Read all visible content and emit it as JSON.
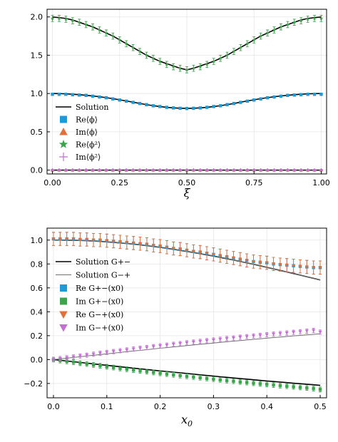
{
  "colors": {
    "solution": "#000000",
    "solution_alt": "#707070",
    "blue": "#1e9bd7",
    "orange": "#e1703c",
    "green": "#3da44d",
    "purple": "#c271d2"
  },
  "chart_data": [
    {
      "type": "scatter",
      "xlabel": "ξ",
      "xlim": [
        -0.02,
        1.02
      ],
      "ylim": [
        -0.05,
        2.1
      ],
      "xticks": [
        "0.00",
        "0.25",
        "0.50",
        "0.75",
        "1.00"
      ],
      "yticks": [
        "0.0",
        "0.5",
        "1.0",
        "1.5",
        "2.0"
      ],
      "grid": true,
      "legend_position": "bottom-left",
      "legend": [
        {
          "label": "Solution",
          "marker": "line",
          "color": "#000000"
        },
        {
          "label": "Re⟨ϕ⟩",
          "marker": "square",
          "color": "#1e9bd7"
        },
        {
          "label": "Im⟨ϕ⟩",
          "marker": "triangle-up",
          "color": "#e1703c"
        },
        {
          "label": "Re⟨ϕ²⟩",
          "marker": "star",
          "color": "#3da44d"
        },
        {
          "label": "Im⟨ϕ²⟩",
          "marker": "cross",
          "color": "#c271d2"
        }
      ],
      "x": [
        0.0,
        0.025,
        0.05,
        0.075,
        0.1,
        0.125,
        0.15,
        0.175,
        0.2,
        0.225,
        0.25,
        0.275,
        0.3,
        0.325,
        0.35,
        0.375,
        0.4,
        0.425,
        0.45,
        0.475,
        0.5,
        0.525,
        0.55,
        0.575,
        0.6,
        0.625,
        0.65,
        0.675,
        0.7,
        0.725,
        0.75,
        0.775,
        0.8,
        0.825,
        0.85,
        0.875,
        0.9,
        0.925,
        0.95,
        0.975,
        1.0
      ],
      "series": [
        {
          "kind": "line",
          "values": [
            2.0,
            1.99,
            1.98,
            1.96,
            1.93,
            1.9,
            1.87,
            1.83,
            1.79,
            1.75,
            1.7,
            1.65,
            1.6,
            1.55,
            1.5,
            1.46,
            1.42,
            1.39,
            1.36,
            1.33,
            1.31,
            1.33,
            1.36,
            1.39,
            1.42,
            1.46,
            1.5,
            1.55,
            1.6,
            1.65,
            1.7,
            1.75,
            1.79,
            1.83,
            1.87,
            1.9,
            1.93,
            1.96,
            1.98,
            1.99,
            2.0
          ]
        },
        {
          "kind": "line",
          "values": [
            1.0,
            0.999,
            0.996,
            0.991,
            0.985,
            0.977,
            0.968,
            0.958,
            0.946,
            0.933,
            0.918,
            0.903,
            0.887,
            0.87,
            0.855,
            0.841,
            0.83,
            0.82,
            0.813,
            0.808,
            0.806,
            0.808,
            0.813,
            0.82,
            0.83,
            0.841,
            0.855,
            0.87,
            0.887,
            0.903,
            0.918,
            0.933,
            0.946,
            0.958,
            0.968,
            0.977,
            0.985,
            0.991,
            0.996,
            0.999,
            1.0
          ]
        },
        {
          "kind": "line",
          "values": [
            0.0,
            0.0,
            0.0,
            0.0,
            0.0,
            0.0,
            0.0,
            0.0,
            0.0,
            0.0,
            0.0,
            0.0,
            0.0,
            0.0,
            0.0,
            0.0,
            0.0,
            0.0,
            0.0,
            0.0,
            0.0,
            0.0,
            0.0,
            0.0,
            0.0,
            0.0,
            0.0,
            0.0,
            0.0,
            0.0,
            0.0,
            0.0,
            0.0,
            0.0,
            0.0,
            0.0,
            0.0,
            0.0,
            0.0,
            0.0,
            0.0
          ]
        },
        {
          "name": "Re⟨ϕ⟩",
          "kind": "marker",
          "marker": "square",
          "color": "#1e9bd7",
          "err": 0.015,
          "values": [
            0.99,
            0.99,
            0.99,
            0.985,
            0.98,
            0.975,
            0.965,
            0.955,
            0.945,
            0.93,
            0.915,
            0.9,
            0.885,
            0.87,
            0.855,
            0.84,
            0.83,
            0.82,
            0.812,
            0.807,
            0.805,
            0.807,
            0.812,
            0.82,
            0.83,
            0.84,
            0.855,
            0.87,
            0.885,
            0.9,
            0.915,
            0.93,
            0.945,
            0.955,
            0.965,
            0.975,
            0.98,
            0.985,
            0.99,
            0.99,
            0.99
          ]
        },
        {
          "name": "Re⟨ϕ²⟩",
          "kind": "marker",
          "marker": "star",
          "color": "#3da44d",
          "err": 0.04,
          "values": [
            1.98,
            1.98,
            1.97,
            1.95,
            1.93,
            1.9,
            1.87,
            1.83,
            1.79,
            1.75,
            1.7,
            1.65,
            1.6,
            1.55,
            1.5,
            1.46,
            1.42,
            1.38,
            1.35,
            1.33,
            1.31,
            1.33,
            1.35,
            1.38,
            1.42,
            1.46,
            1.5,
            1.55,
            1.6,
            1.65,
            1.7,
            1.75,
            1.79,
            1.83,
            1.87,
            1.9,
            1.93,
            1.95,
            1.97,
            1.98,
            1.98
          ]
        },
        {
          "name": "Im⟨ϕ⟩",
          "kind": "marker",
          "marker": "triangle-up",
          "color": "#e1703c",
          "err": 0.01,
          "values": [
            0.0,
            0.0,
            0.0,
            0.0,
            0.0,
            0.0,
            0.0,
            0.0,
            0.0,
            0.0,
            0.0,
            0.0,
            0.0,
            0.0,
            0.0,
            0.0,
            0.0,
            0.0,
            0.0,
            0.0,
            0.0,
            0.0,
            0.0,
            0.0,
            0.0,
            0.0,
            0.0,
            0.0,
            0.0,
            0.0,
            0.0,
            0.0,
            0.0,
            0.0,
            0.0,
            0.0,
            0.0,
            0.0,
            0.0,
            0.0,
            0.0
          ]
        },
        {
          "name": "Im⟨ϕ²⟩",
          "kind": "marker",
          "marker": "cross",
          "color": "#c271d2",
          "err": 0.01,
          "values": [
            0.0,
            0.0,
            0.0,
            0.0,
            0.0,
            0.0,
            0.0,
            0.0,
            0.0,
            0.0,
            0.0,
            0.0,
            0.0,
            0.0,
            0.0,
            0.0,
            0.0,
            0.0,
            0.0,
            0.0,
            0.0,
            0.0,
            0.0,
            0.0,
            0.0,
            0.0,
            0.0,
            0.0,
            0.0,
            0.0,
            0.0,
            0.0,
            0.0,
            0.0,
            0.0,
            0.0,
            0.0,
            0.0,
            0.0,
            0.0,
            0.0
          ]
        }
      ]
    },
    {
      "type": "scatter",
      "xlabel": "x0",
      "xlim": [
        -0.012,
        0.512
      ],
      "ylim": [
        -0.32,
        1.1
      ],
      "xticks": [
        "0.0",
        "0.1",
        "0.2",
        "0.3",
        "0.4",
        "0.5"
      ],
      "xtick_values": [
        0.0,
        0.1,
        0.2,
        0.3,
        0.4,
        0.5
      ],
      "yticks": [
        "−0.2",
        "0.0",
        "0.2",
        "0.4",
        "0.6",
        "0.8",
        "1.0"
      ],
      "ytick_values": [
        -0.2,
        0.0,
        0.2,
        0.4,
        0.6,
        0.8,
        1.0
      ],
      "grid": true,
      "legend_position": "top-left",
      "legend": [
        {
          "label": "Solution G+−",
          "marker": "line",
          "color": "#000000"
        },
        {
          "label": "Solution G−+",
          "marker": "line-thin",
          "color": "#707070"
        },
        {
          "label": "Re G+−(x0)",
          "marker": "square",
          "color": "#1e9bd7"
        },
        {
          "label": "Im G+−(x0)",
          "marker": "square",
          "color": "#3da44d"
        },
        {
          "label": "Re G−+(x0)",
          "marker": "triangle-down",
          "color": "#e1703c"
        },
        {
          "label": "Im G−+(x0)",
          "marker": "triangle-down",
          "color": "#c271d2"
        }
      ],
      "x": [
        0.0,
        0.0125,
        0.025,
        0.0375,
        0.05,
        0.0625,
        0.075,
        0.0875,
        0.1,
        0.1125,
        0.125,
        0.1375,
        0.15,
        0.1625,
        0.175,
        0.1875,
        0.2,
        0.2125,
        0.225,
        0.2375,
        0.25,
        0.2625,
        0.275,
        0.2875,
        0.3,
        0.3125,
        0.325,
        0.3375,
        0.35,
        0.3625,
        0.375,
        0.3875,
        0.4,
        0.4125,
        0.425,
        0.4375,
        0.45,
        0.4625,
        0.475,
        0.4875,
        0.5
      ],
      "series": [
        {
          "kind": "line",
          "name": "Solution G+−",
          "values": [
            1.0,
            1.0,
            0.999,
            0.998,
            0.997,
            0.995,
            0.992,
            0.989,
            0.985,
            0.981,
            0.976,
            0.971,
            0.966,
            0.96,
            0.953,
            0.946,
            0.939,
            0.931,
            0.923,
            0.914,
            0.905,
            0.896,
            0.886,
            0.876,
            0.866,
            0.855,
            0.844,
            0.833,
            0.821,
            0.809,
            0.797,
            0.785,
            0.772,
            0.759,
            0.746,
            0.733,
            0.72,
            0.707,
            0.693,
            0.68,
            0.666
          ]
        },
        {
          "kind": "line",
          "name": "Solution G+−",
          "values": [
            0.0,
            -0.006,
            -0.012,
            -0.018,
            -0.024,
            -0.03,
            -0.036,
            -0.042,
            -0.048,
            -0.054,
            -0.06,
            -0.066,
            -0.072,
            -0.077,
            -0.083,
            -0.089,
            -0.095,
            -0.1,
            -0.106,
            -0.111,
            -0.117,
            -0.122,
            -0.128,
            -0.133,
            -0.138,
            -0.144,
            -0.149,
            -0.154,
            -0.159,
            -0.164,
            -0.169,
            -0.174,
            -0.179,
            -0.184,
            -0.188,
            -0.193,
            -0.198,
            -0.202,
            -0.207,
            -0.211,
            -0.216
          ]
        },
        {
          "kind": "line-thin",
          "name": "Solution G−+",
          "values": [
            1.0,
            1.0,
            0.999,
            0.998,
            0.997,
            0.995,
            0.992,
            0.989,
            0.985,
            0.981,
            0.976,
            0.971,
            0.966,
            0.96,
            0.953,
            0.946,
            0.939,
            0.931,
            0.923,
            0.914,
            0.905,
            0.896,
            0.886,
            0.876,
            0.866,
            0.855,
            0.844,
            0.833,
            0.821,
            0.809,
            0.797,
            0.785,
            0.772,
            0.759,
            0.746,
            0.733,
            0.72,
            0.707,
            0.693,
            0.68,
            0.666
          ]
        },
        {
          "kind": "line-thin",
          "name": "Solution G−+",
          "values": [
            0.0,
            0.006,
            0.012,
            0.018,
            0.024,
            0.03,
            0.036,
            0.042,
            0.048,
            0.054,
            0.06,
            0.066,
            0.072,
            0.077,
            0.083,
            0.089,
            0.095,
            0.1,
            0.106,
            0.111,
            0.117,
            0.122,
            0.128,
            0.133,
            0.138,
            0.144,
            0.149,
            0.154,
            0.159,
            0.164,
            0.169,
            0.174,
            0.179,
            0.184,
            0.188,
            0.193,
            0.198,
            0.202,
            0.207,
            0.211,
            0.216
          ]
        },
        {
          "name": "Re G+−(x0)",
          "kind": "marker",
          "marker": "square",
          "color": "#1e9bd7",
          "err": 0.055,
          "values": [
            1.01,
            1.01,
            1.01,
            1.01,
            1.005,
            1.005,
            1.0,
            1.0,
            0.995,
            0.99,
            0.985,
            0.98,
            0.975,
            0.97,
            0.965,
            0.955,
            0.95,
            0.94,
            0.93,
            0.925,
            0.915,
            0.905,
            0.9,
            0.89,
            0.88,
            0.87,
            0.86,
            0.85,
            0.84,
            0.83,
            0.82,
            0.815,
            0.81,
            0.8,
            0.795,
            0.79,
            0.785,
            0.78,
            0.775,
            0.77,
            0.77
          ]
        },
        {
          "name": "Re G−+(x0)",
          "kind": "marker",
          "marker": "triangle-down",
          "color": "#e1703c",
          "err": 0.055,
          "values": [
            1.01,
            1.01,
            1.01,
            1.01,
            1.005,
            1.005,
            1.0,
            1.0,
            0.995,
            0.99,
            0.985,
            0.98,
            0.975,
            0.97,
            0.965,
            0.955,
            0.95,
            0.94,
            0.93,
            0.925,
            0.915,
            0.905,
            0.9,
            0.89,
            0.88,
            0.87,
            0.86,
            0.85,
            0.84,
            0.83,
            0.82,
            0.815,
            0.81,
            0.8,
            0.795,
            0.79,
            0.785,
            0.78,
            0.775,
            0.77,
            0.77
          ]
        },
        {
          "name": "Im G+−(x0)",
          "kind": "marker",
          "marker": "square",
          "color": "#3da44d",
          "err": 0.02,
          "values": [
            0.0,
            -0.008,
            -0.015,
            -0.022,
            -0.03,
            -0.037,
            -0.045,
            -0.052,
            -0.06,
            -0.067,
            -0.074,
            -0.081,
            -0.088,
            -0.095,
            -0.101,
            -0.108,
            -0.115,
            -0.121,
            -0.128,
            -0.134,
            -0.14,
            -0.146,
            -0.152,
            -0.158,
            -0.164,
            -0.17,
            -0.176,
            -0.181,
            -0.187,
            -0.192,
            -0.198,
            -0.203,
            -0.208,
            -0.213,
            -0.218,
            -0.223,
            -0.228,
            -0.233,
            -0.238,
            -0.243,
            -0.25
          ]
        },
        {
          "name": "Im G−+(x0)",
          "kind": "marker",
          "marker": "triangle-down",
          "color": "#c271d2",
          "err": 0.018,
          "values": [
            0.0,
            0.008,
            0.015,
            0.022,
            0.03,
            0.037,
            0.045,
            0.052,
            0.06,
            0.067,
            0.074,
            0.081,
            0.088,
            0.095,
            0.101,
            0.108,
            0.115,
            0.121,
            0.128,
            0.134,
            0.14,
            0.146,
            0.152,
            0.158,
            0.164,
            0.17,
            0.176,
            0.181,
            0.187,
            0.192,
            0.198,
            0.203,
            0.208,
            0.213,
            0.218,
            0.223,
            0.228,
            0.233,
            0.238,
            0.243,
            0.23
          ]
        }
      ]
    }
  ]
}
